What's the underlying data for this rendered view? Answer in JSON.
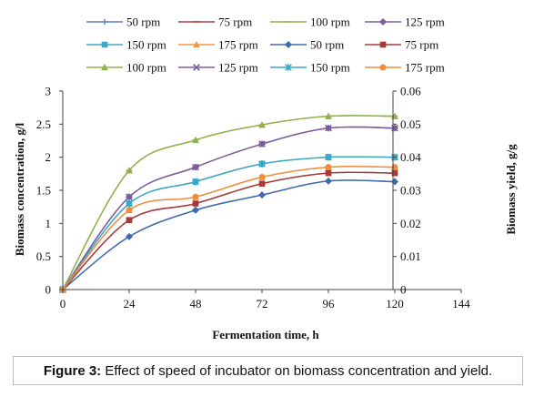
{
  "chart_data": {
    "type": "line",
    "x": [
      0,
      24,
      48,
      72,
      96,
      120
    ],
    "xlabel": "Fermentation time, h",
    "ylabel": "Biomass concentration, g/l",
    "y2label": "Biomass yield, g/g",
    "xlim": [
      0,
      144
    ],
    "ylim": [
      0,
      3
    ],
    "y2lim": [
      0,
      0.06
    ],
    "xticks": [
      "0",
      "24",
      "48",
      "72",
      "96",
      "120",
      "144"
    ],
    "yticks": [
      "0",
      "0.5",
      "1",
      "1.5",
      "2",
      "2.5",
      "3"
    ],
    "y2ticks": [
      "0",
      "0.01",
      "0.02",
      "0.03",
      "0.04",
      "0.05",
      "0.06"
    ],
    "grid": false,
    "legend_placement": "top",
    "series": [
      {
        "name": "50 rpm",
        "axis": "right",
        "marker": "plus",
        "color": "#5b7fb8",
        "values": [
          0,
          0.016,
          0.024,
          0.0286,
          0.0328,
          0.0326
        ]
      },
      {
        "name": "75 rpm",
        "axis": "right",
        "marker": "dash",
        "color": "#a0413f",
        "values": [
          0,
          0.021,
          0.026,
          0.032,
          0.0352,
          0.0352
        ]
      },
      {
        "name": "100 rpm",
        "axis": "right",
        "marker": "dash",
        "color": "#8bb04b",
        "values": [
          0,
          0.036,
          0.0452,
          0.0498,
          0.0524,
          0.0524
        ]
      },
      {
        "name": "125 rpm",
        "axis": "right",
        "marker": "diamond",
        "color": "#7a5d9a",
        "values": [
          0,
          0.028,
          0.037,
          0.044,
          0.0488,
          0.0488
        ]
      },
      {
        "name": "150 rpm",
        "axis": "right",
        "marker": "square",
        "color": "#3fa8c8",
        "values": [
          0,
          0.026,
          0.0326,
          0.038,
          0.04,
          0.04
        ]
      },
      {
        "name": "175 rpm",
        "axis": "right",
        "marker": "triangle",
        "color": "#ef9b45",
        "values": [
          0,
          0.024,
          0.028,
          0.034,
          0.037,
          0.037
        ]
      },
      {
        "name": "50 rpm",
        "axis": "left",
        "marker": "diamond",
        "color": "#3e6aab",
        "values": [
          0,
          0.8,
          1.2,
          1.43,
          1.64,
          1.63
        ]
      },
      {
        "name": "75 rpm",
        "axis": "left",
        "marker": "square",
        "color": "#a53b38",
        "values": [
          0,
          1.05,
          1.3,
          1.6,
          1.76,
          1.76
        ]
      },
      {
        "name": "100 rpm",
        "axis": "left",
        "marker": "triangle",
        "color": "#8fb04a",
        "values": [
          0,
          1.8,
          2.26,
          2.49,
          2.62,
          2.62
        ]
      },
      {
        "name": "125 rpm",
        "axis": "left",
        "marker": "x",
        "color": "#7b5c9b",
        "values": [
          0,
          1.4,
          1.85,
          2.2,
          2.44,
          2.44
        ]
      },
      {
        "name": "150 rpm",
        "axis": "left",
        "marker": "asterisk",
        "color": "#3aa7c6",
        "values": [
          0,
          1.3,
          1.63,
          1.9,
          2.0,
          2.0
        ]
      },
      {
        "name": "175 rpm",
        "axis": "left",
        "marker": "circle",
        "color": "#f08c3a",
        "values": [
          0,
          1.2,
          1.4,
          1.7,
          1.85,
          1.85
        ]
      }
    ]
  },
  "caption": {
    "label": "Figure 3:",
    "text": " Effect of speed of incubator on biomass concentration and yield."
  }
}
